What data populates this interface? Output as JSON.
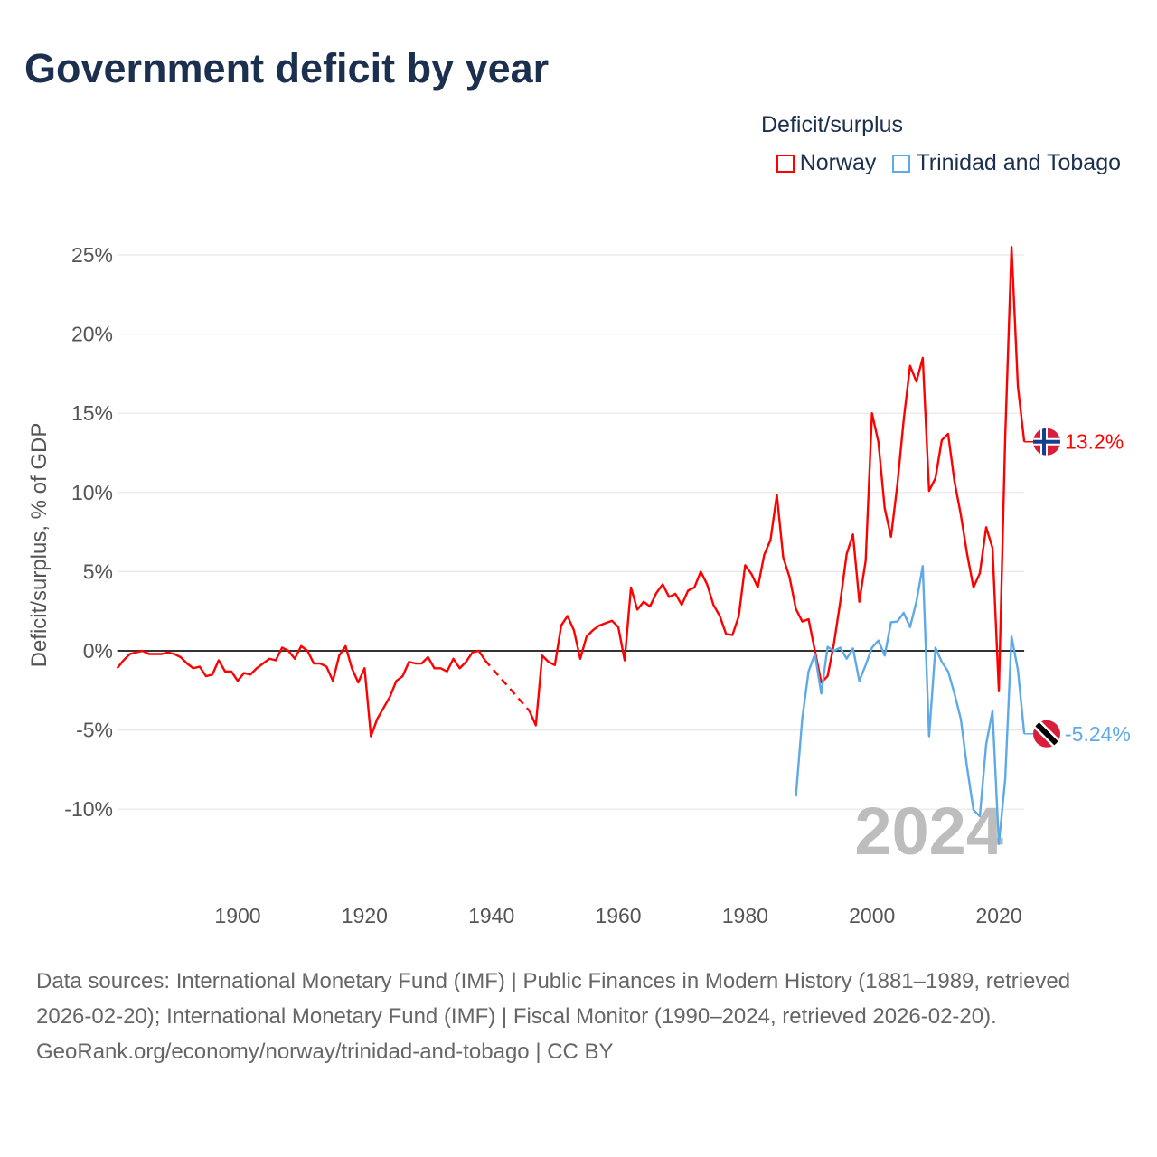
{
  "title": "Government deficit by year",
  "legend": {
    "title": "Deficit/surplus",
    "items": [
      {
        "label": "Norway",
        "color": "#ff0000"
      },
      {
        "label": "Trinidad and Tobago",
        "color": "#5ea9e8"
      }
    ]
  },
  "watermark_year": "2024",
  "footer": {
    "sources": "Data sources: International Monetary Fund (IMF) | Public Finances in Modern History (1881–1989, retrieved 2026-02-20); International Monetary Fund (IMF) | Fiscal Monitor (1990–2024, retrieved 2026-02-20).",
    "link": "GeoRank.org/economy/norway/trinidad-and-tobago | CC BY"
  },
  "chart_data": {
    "type": "line",
    "title": "Government deficit by year",
    "xlabel": "",
    "ylabel": "Deficit/surplus, % of GDP",
    "xlim": [
      1881,
      2024
    ],
    "ylim": [
      -12.5,
      26
    ],
    "x_ticks": [
      "1900",
      "1920",
      "1940",
      "1960",
      "1980",
      "2000",
      "2020"
    ],
    "y_ticks": [
      "25%",
      "20%",
      "15%",
      "10%",
      "5%",
      "0%",
      "-5%",
      "-10%"
    ],
    "grid": true,
    "legend_position": "top-right",
    "end_labels": [
      "13.2%",
      "-5.24%"
    ],
    "series": [
      {
        "name": "Norway",
        "color": "#ff0000",
        "start_year": 1881,
        "values": [
          -1.1,
          -0.6,
          -0.2,
          -0.1,
          0,
          -0.2,
          -0.2,
          -0.2,
          -0.1,
          -0.2,
          -0.4,
          -0.8,
          -1.1,
          -1.0,
          -1.6,
          -1.5,
          -0.6,
          -1.3,
          -1.3,
          -1.9,
          -1.4,
          -1.5,
          -1.1,
          -0.8,
          -0.5,
          -0.6,
          0.2,
          0,
          -0.5,
          0.3,
          0,
          -0.8,
          -0.8,
          -1.0,
          -1.9,
          -0.3,
          0.3,
          -1.1,
          -2.0,
          -1.1,
          -5.4,
          -4.3,
          -3.6,
          -2.9,
          -1.9,
          -1.6,
          -0.7,
          -0.8,
          -0.8,
          -0.4,
          -1.1,
          -1.1,
          -1.3,
          -0.5,
          -1.1,
          -0.7,
          -0.1,
          0,
          -0.6,
          null,
          null,
          null,
          null,
          null,
          null,
          -3.8,
          -4.7,
          -0.3,
          -0.7,
          -0.9,
          1.6,
          2.2,
          1.3,
          -0.5,
          0.9,
          1.3,
          1.6,
          1.75,
          1.9,
          1.5,
          -0.6,
          4.0,
          2.6,
          3.1,
          2.8,
          3.65,
          4.2,
          3.4,
          3.6,
          2.9,
          3.8,
          4.0,
          5.0,
          4.2,
          2.9,
          2.2,
          1.05,
          1.0,
          2.2,
          5.4,
          4.85,
          4.0,
          6.05,
          7.0,
          9.85,
          5.9,
          4.65,
          2.65,
          1.85,
          2.0,
          0,
          -2.0,
          -1.6,
          0.45,
          3.1,
          6.1,
          7.35,
          3.1,
          5.7,
          15.0,
          13.2,
          9.0,
          7.2,
          10.5,
          14.6,
          18.0,
          17.0,
          18.5,
          10.1,
          10.9,
          13.3,
          13.7,
          10.7,
          8.6,
          6.1,
          4.0,
          4.9,
          7.8,
          6.5,
          -2.55,
          13.5,
          25.5,
          16.7,
          13.2
        ]
      },
      {
        "name": "Trinidad and Tobago",
        "color": "#5ea9e8",
        "start_year": 1988,
        "values": [
          -9.2,
          -4.3,
          -1.3,
          -0.2,
          -2.7,
          0.25,
          0,
          0.2,
          -0.5,
          0.15,
          -1.9,
          -0.9,
          0.2,
          0.65,
          -0.3,
          1.8,
          1.85,
          2.4,
          1.5,
          3.1,
          5.35,
          -5.4,
          0.2,
          -0.7,
          -1.3,
          -2.7,
          -4.3,
          -7.4,
          -10.05,
          -10.45,
          -5.9,
          -3.8,
          -12.2,
          -8.1,
          0.9,
          -1.2,
          -5.24
        ]
      }
    ]
  }
}
